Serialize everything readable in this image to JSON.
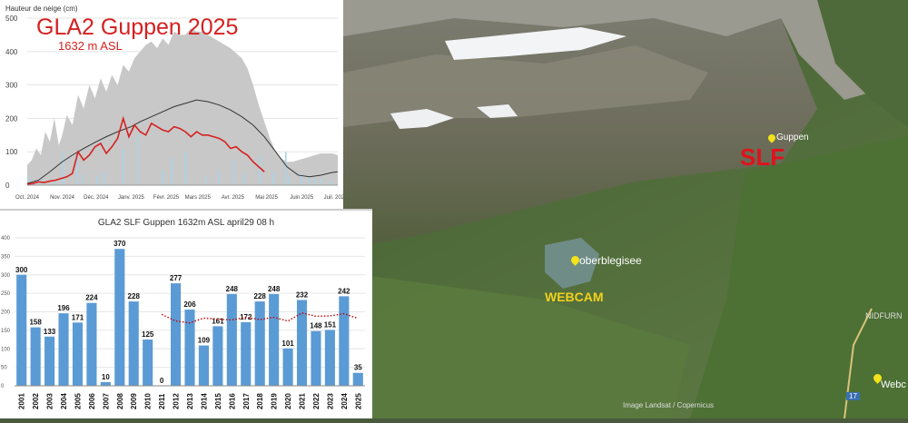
{
  "map": {
    "slf_label": "SLF",
    "guppen_label": "Guppen",
    "lake_label": "oberblegisee",
    "webcam_label": "WEBCAM",
    "village_label": "NIDFURN",
    "webcam_right_label": "Webc",
    "road_sign": "17",
    "copyright": "Image Landsat / Copernicus",
    "colors": {
      "slf": "#e0121b",
      "webcam": "#f2d21b",
      "pin": "#f4e21a"
    }
  },
  "chart_data": [
    {
      "type": "area",
      "title": "GLA2 Guppen 2025",
      "subtitle": "1632 m ASL",
      "ylabel": "Hauteur de neige (cm)",
      "xlabel": "",
      "ylim": [
        0,
        500
      ],
      "yticks": [
        0,
        100,
        200,
        300,
        400,
        500
      ],
      "x_tick_labels": [
        "Oct. 2024",
        "Nov. 2024",
        "Déc. 2024",
        "Janv. 2025",
        "Févr. 2025",
        "Mars 2025",
        "Avr. 2025",
        "Mai 2025",
        "Juin 2025",
        "Juil. 2025"
      ],
      "grid": true,
      "colors": {
        "band": "#c8c8c8",
        "mean": "#333333",
        "current": "#d62020",
        "bars": "#a9d4e6",
        "title": "#d62020"
      },
      "series": [
        {
          "role": "max",
          "x": [
            0,
            4,
            8,
            12,
            16,
            20,
            24,
            28,
            31,
            35,
            40,
            45,
            50,
            55,
            60,
            65,
            70,
            75,
            80,
            85,
            90,
            95,
            100,
            105,
            110,
            115,
            120,
            125,
            130,
            135,
            140,
            145,
            150,
            155,
            160,
            165,
            170,
            175,
            180,
            185,
            190,
            195,
            200,
            205,
            210,
            215,
            220,
            225,
            230,
            235,
            240,
            245,
            250,
            255,
            260,
            265,
            270,
            275
          ],
          "values": [
            60,
            75,
            110,
            90,
            160,
            130,
            200,
            120,
            150,
            210,
            180,
            270,
            230,
            300,
            260,
            320,
            280,
            330,
            300,
            360,
            340,
            380,
            400,
            420,
            430,
            410,
            440,
            420,
            460,
            450,
            450,
            470,
            460,
            460,
            450,
            440,
            430,
            420,
            410,
            395,
            380,
            350,
            300,
            240,
            190,
            140,
            100,
            80,
            70,
            70,
            75,
            80,
            85,
            90,
            95,
            95,
            95,
            90
          ]
        },
        {
          "role": "mean",
          "x": [
            0,
            10,
            20,
            31,
            40,
            50,
            61,
            70,
            80,
            92,
            100,
            110,
            120,
            130,
            140,
            150,
            160,
            170,
            180,
            190,
            200,
            210,
            220,
            230,
            240,
            250,
            260,
            270,
            275
          ],
          "values": [
            5,
            15,
            40,
            70,
            90,
            110,
            130,
            145,
            160,
            175,
            190,
            205,
            220,
            235,
            245,
            255,
            250,
            240,
            225,
            205,
            180,
            145,
            100,
            55,
            30,
            25,
            30,
            38,
            40
          ]
        },
        {
          "role": "current",
          "x": [
            0,
            5,
            10,
            15,
            20,
            25,
            30,
            35,
            40,
            45,
            50,
            55,
            60,
            65,
            70,
            75,
            80,
            85,
            90,
            95,
            100,
            105,
            110,
            115,
            120,
            125,
            130,
            135,
            140,
            145,
            150,
            155,
            160,
            165,
            170,
            175,
            180,
            185,
            190,
            195,
            200,
            205,
            210
          ],
          "values": [
            3,
            5,
            10,
            8,
            12,
            15,
            20,
            25,
            35,
            100,
            75,
            90,
            115,
            125,
            95,
            115,
            140,
            200,
            145,
            180,
            160,
            150,
            185,
            175,
            165,
            160,
            175,
            170,
            160,
            145,
            160,
            150,
            150,
            145,
            140,
            130,
            110,
            115,
            100,
            90,
            70,
            55,
            40
          ]
        }
      ],
      "snowfall_bars": {
        "x": [
          2,
          12,
          25,
          32,
          44,
          49,
          62,
          68,
          85,
          98,
          120,
          128,
          140,
          158,
          170,
          183,
          192,
          206,
          218,
          229,
          232,
          243,
          250,
          255,
          260,
          268
        ],
        "values": [
          30,
          20,
          10,
          100,
          90,
          35,
          30,
          40,
          110,
          150,
          45,
          85,
          100,
          30,
          45,
          75,
          40,
          90,
          40,
          100,
          25,
          35,
          30,
          20,
          20,
          15
        ]
      }
    },
    {
      "type": "bar",
      "title": "GLA2 SLF Guppen 1632m ASL  april29 08 h",
      "categories": [
        "2001",
        "2002",
        "2003",
        "2004",
        "2005",
        "2006",
        "2007",
        "2008",
        "2009",
        "2010",
        "2011",
        "2012",
        "2013",
        "2014",
        "2015",
        "2016",
        "2017",
        "2018",
        "2019",
        "2020",
        "2021",
        "2022",
        "2023",
        "2024",
        "2025"
      ],
      "values": [
        300,
        158,
        133,
        196,
        171,
        224,
        10,
        370,
        228,
        125,
        0,
        277,
        206,
        109,
        161,
        248,
        172,
        228,
        248,
        101,
        232,
        148,
        151,
        242,
        35
      ],
      "ylim": [
        0,
        400
      ],
      "yticks": [
        0,
        50,
        100,
        150,
        200,
        250,
        300,
        350,
        400
      ],
      "grid": true,
      "colors": {
        "bar": "#5b9bd5",
        "trend": "#c00000"
      },
      "trend": {
        "style": "dotted",
        "values": [
          null,
          null,
          null,
          null,
          null,
          null,
          null,
          null,
          null,
          null,
          193,
          175,
          170,
          183,
          180,
          178,
          185,
          179,
          185,
          175,
          197,
          188,
          189,
          195,
          182
        ]
      }
    }
  ]
}
